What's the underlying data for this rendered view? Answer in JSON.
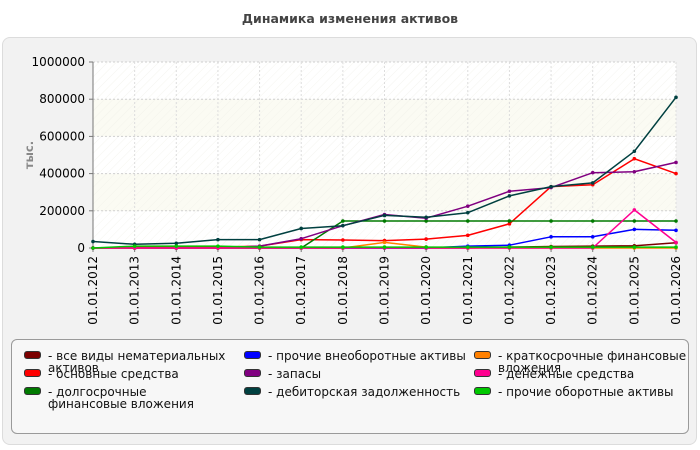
{
  "chart_data": {
    "type": "line",
    "title": "Динамика изменения активов",
    "xlabel": "",
    "ylabel": "тыс.",
    "ylim": [
      0,
      1000000
    ],
    "yticks": [
      "0",
      "200000",
      "400000",
      "600000",
      "800000",
      "1000000"
    ],
    "categories": [
      "01.01.2012",
      "01.01.2013",
      "01.01.2014",
      "01.01.2015",
      "01.01.2016",
      "01.01.2017",
      "01.01.2018",
      "01.01.2019",
      "01.01.2020",
      "01.01.2021",
      "01.01.2022",
      "01.01.2023",
      "01.01.2024",
      "01.01.2025",
      "01.01.2026"
    ],
    "grid": true,
    "legend_position": "bottom",
    "series": [
      {
        "name": "- все виды нематериальных активов",
        "color": "#7b0000",
        "values": [
          0,
          0,
          0,
          0,
          0,
          0,
          0,
          0,
          0,
          0,
          5000,
          8000,
          10000,
          12000,
          28000
        ]
      },
      {
        "name": "- основные средства",
        "color": "#ff0000",
        "values": [
          0,
          5000,
          5000,
          5000,
          10000,
          45000,
          43000,
          40000,
          48000,
          68000,
          130000,
          330000,
          340000,
          480000,
          400000
        ]
      },
      {
        "name": "- долгосрочные финансовые вложения",
        "color": "#007a00",
        "values": [
          0,
          0,
          0,
          0,
          0,
          0,
          145000,
          145000,
          145000,
          145000,
          145000,
          145000,
          145000,
          145000,
          145000
        ]
      },
      {
        "name": "- прочие внеоборотные активы",
        "color": "#0000ff",
        "values": [
          0,
          0,
          0,
          0,
          0,
          0,
          0,
          0,
          0,
          10000,
          15000,
          60000,
          60000,
          100000,
          95000
        ]
      },
      {
        "name": "- запасы",
        "color": "#800080",
        "values": [
          0,
          0,
          0,
          0,
          10000,
          50000,
          120000,
          180000,
          160000,
          225000,
          305000,
          325000,
          405000,
          410000,
          460000
        ]
      },
      {
        "name": "- дебиторская задолженность",
        "color": "#004040",
        "values": [
          35000,
          20000,
          25000,
          45000,
          45000,
          105000,
          120000,
          175000,
          165000,
          190000,
          280000,
          330000,
          350000,
          520000,
          810000
        ]
      },
      {
        "name": "- краткосрочные финансовые вложения",
        "color": "#ff8000",
        "values": [
          0,
          0,
          0,
          0,
          0,
          0,
          0,
          30000,
          5000,
          0,
          0,
          0,
          0,
          0,
          0
        ]
      },
      {
        "name": "- денежные средства",
        "color": "#ff0090",
        "values": [
          0,
          0,
          0,
          0,
          0,
          0,
          0,
          0,
          0,
          0,
          0,
          0,
          0,
          205000,
          30000
        ]
      },
      {
        "name": "- прочие оборотные активы",
        "color": "#00c800",
        "values": [
          0,
          10000,
          10000,
          10000,
          5000,
          5000,
          5000,
          5000,
          5000,
          5000,
          5000,
          5000,
          5000,
          5000,
          5000
        ]
      }
    ]
  }
}
